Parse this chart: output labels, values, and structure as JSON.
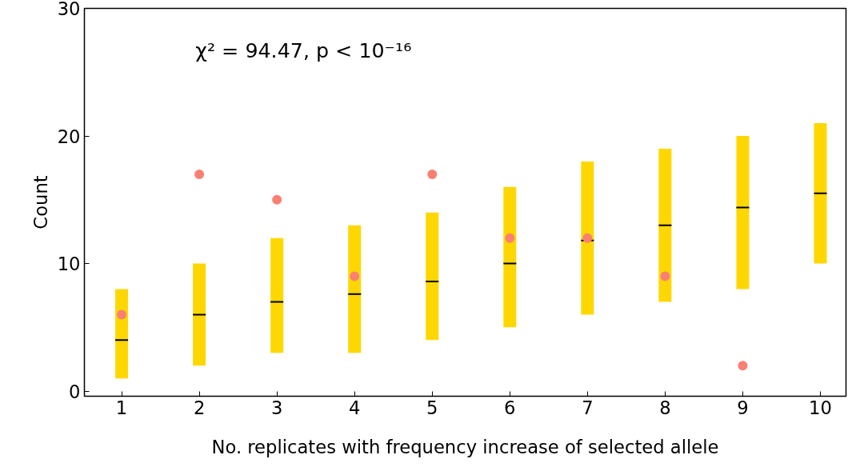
{
  "chart_data": {
    "type": "box",
    "categories": [
      "1",
      "2",
      "3",
      "4",
      "5",
      "6",
      "7",
      "8",
      "9",
      "10"
    ],
    "xlabel": "No. replicates with frequency increase of selected allele",
    "ylabel": "Count",
    "ylim": [
      -0.4,
      30
    ],
    "yticks": [
      0,
      10,
      20,
      30
    ],
    "annotations": [
      "χ² = 94.47, p < 10⁻¹⁶"
    ],
    "grid": false,
    "series": [
      {
        "color": "#ffd700",
        "boxes": [
          {
            "low": 1,
            "q1": 1,
            "median": 4,
            "q3": 8,
            "high": 8
          },
          {
            "low": 2,
            "q1": 2,
            "median": 6,
            "q3": 10,
            "high": 10
          },
          {
            "low": 3,
            "q1": 3,
            "median": 7,
            "q3": 12,
            "high": 12
          },
          {
            "low": 3,
            "q1": 3,
            "median": 7.6,
            "q3": 13,
            "high": 13
          },
          {
            "low": 4,
            "q1": 4,
            "median": 8.6,
            "q3": 14,
            "high": 14
          },
          {
            "low": 5,
            "q1": 5,
            "median": 10,
            "q3": 16,
            "high": 16
          },
          {
            "low": 6,
            "q1": 6,
            "median": 11.8,
            "q3": 18,
            "high": 18
          },
          {
            "low": 7,
            "q1": 7,
            "median": 13,
            "q3": 19,
            "high": 19
          },
          {
            "low": 8,
            "q1": 8,
            "median": 14.4,
            "q3": 20,
            "high": 20
          },
          {
            "low": 10,
            "q1": 10,
            "median": 15.5,
            "q3": 21,
            "high": 21
          }
        ]
      },
      {
        "type": "scatter",
        "color": "#fa8072",
        "marker": "circle",
        "x": [
          "1",
          "2",
          "3",
          "4",
          "5",
          "6",
          "7",
          "8",
          "9",
          "10"
        ],
        "values": [
          6,
          17,
          15,
          9,
          17,
          12,
          12,
          9,
          2,
          null
        ]
      }
    ]
  }
}
